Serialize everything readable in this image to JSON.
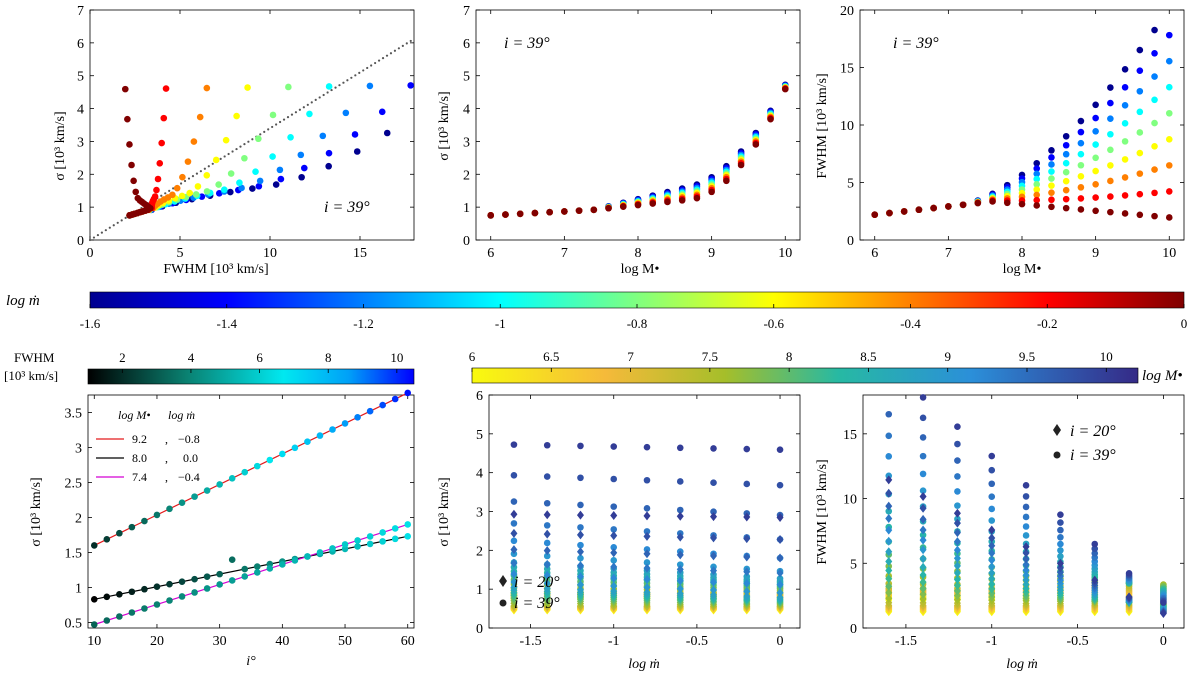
{
  "colorbars": {
    "mdot": {
      "label": "log ṁ",
      "min": -1.6,
      "max": 0,
      "ticks": [
        "-1.6",
        "-1.4",
        "-1.2",
        "-1",
        "-0.8",
        "-0.6",
        "-0.4",
        "-0.2",
        "0"
      ],
      "colormap": "jet"
    },
    "fwhm": {
      "label_line1": "FWHM",
      "label_line2": "[10³ km/s]",
      "min": 1,
      "max": 10.5,
      "ticks": [
        "2",
        "4",
        "6",
        "8",
        "10"
      ],
      "colormap": "black-teal-cyan-blue"
    },
    "mbh": {
      "label": "log M•",
      "min": 6,
      "max": 10.2,
      "ticks": [
        "6",
        "6.5",
        "7",
        "7.5",
        "8",
        "8.5",
        "9",
        "9.5",
        "10"
      ],
      "colormap": "parula-reversed"
    }
  },
  "chart_data": [
    {
      "type": "scatter",
      "annotation": "i = 39°",
      "xlabel": "FWHM [10³ km/s]",
      "ylabel": "σ [10³ km/s]",
      "xlim": [
        0,
        18
      ],
      "ylim": [
        0,
        7
      ],
      "xticks": [
        "0",
        "5",
        "10",
        "15"
      ],
      "yticks": [
        "0",
        "1",
        "2",
        "3",
        "4",
        "5",
        "6",
        "7"
      ],
      "reference_line": {
        "style": "dotted",
        "slope": 0.34
      },
      "note": "points colored by log ṁ (top colorbar)"
    },
    {
      "type": "scatter",
      "annotation": "i = 39°",
      "xlabel": "log M•",
      "ylabel": "σ [10³ km/s]",
      "xlim": [
        5.8,
        10.2
      ],
      "ylim": [
        0,
        7
      ],
      "xticks": [
        "6",
        "7",
        "8",
        "9",
        "10"
      ],
      "yticks": [
        "0",
        "1",
        "2",
        "3",
        "4",
        "5",
        "6",
        "7"
      ]
    },
    {
      "type": "scatter",
      "annotation": "i = 39°",
      "xlabel": "log M•",
      "ylabel": "FWHM [10³ km/s]",
      "xlim": [
        5.8,
        10.2
      ],
      "ylim": [
        0,
        20
      ],
      "xticks": [
        "6",
        "7",
        "8",
        "9",
        "10"
      ],
      "yticks": [
        "0",
        "5",
        "10",
        "15",
        "20"
      ]
    },
    {
      "type": "scatter",
      "xlabel": "i°",
      "ylabel": "σ [10³ km/s]",
      "xlim": [
        9,
        61
      ],
      "ylim": [
        0.42,
        3.75
      ],
      "xticks": [
        "10",
        "20",
        "30",
        "40",
        "50",
        "60"
      ],
      "yticks": [
        "0.5",
        "1",
        "1.5",
        "2",
        "2.5",
        "3",
        "3.5"
      ],
      "legend_header": {
        "col1": "log M•",
        "col2": "log ṁ"
      },
      "series": [
        {
          "logM": "9.2",
          "logmdot": "−0.8",
          "color": "#e41a1c",
          "fit": {
            "x": [
              10,
              60
            ],
            "y": [
              1.6,
              3.78
            ]
          }
        },
        {
          "logM": "8.0",
          "logmdot": "0.0",
          "color": "#000000",
          "fit": {
            "x": [
              10,
              60
            ],
            "y": [
              0.83,
              1.73
            ]
          }
        },
        {
          "logM": "7.4",
          "logmdot": "−0.4",
          "color": "#d400d4",
          "fit": {
            "x": [
              10,
              60
            ],
            "y": [
              0.47,
              1.9
            ]
          }
        }
      ],
      "note": "points colored by FWHM (FWHM colorbar)"
    },
    {
      "type": "scatter",
      "xlabel": "log ṁ",
      "ylabel": "σ [10³ km/s]",
      "xlim": [
        -1.75,
        0.12
      ],
      "ylim": [
        0,
        6
      ],
      "xticks": [
        "-1.5",
        "-1",
        "-0.5",
        "0"
      ],
      "yticks": [
        "0",
        "1",
        "2",
        "3",
        "4",
        "5",
        "6"
      ],
      "legend": [
        {
          "marker": "diamond",
          "label": "i = 20°"
        },
        {
          "marker": "circle",
          "label": "i = 39°"
        }
      ],
      "note": "points colored by log M• (log M• colorbar)"
    },
    {
      "type": "scatter",
      "xlabel": "log ṁ",
      "ylabel": "FWHM [10³ km/s]",
      "xlim": [
        -1.75,
        0.12
      ],
      "ylim": [
        0,
        18
      ],
      "xticks": [
        "-1.5",
        "-1",
        "-0.5",
        "0"
      ],
      "yticks": [
        "0",
        "5",
        "10",
        "15"
      ],
      "legend": [
        {
          "marker": "diamond",
          "label": "i = 20°"
        },
        {
          "marker": "circle",
          "label": "i = 39°"
        }
      ]
    }
  ]
}
